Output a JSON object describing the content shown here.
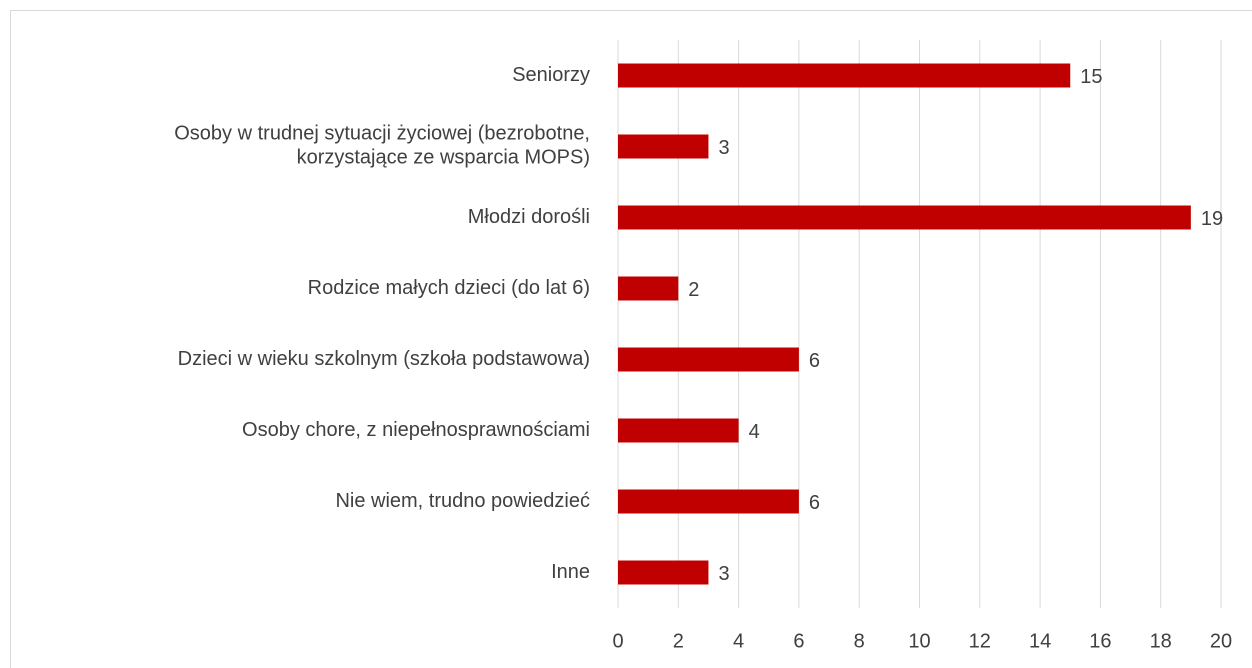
{
  "chart_data": {
    "type": "bar",
    "orientation": "horizontal",
    "categories": [
      "Seniorzy",
      "Osoby w trudnej sytuacji życiowej (bezrobotne,\nkorzystające ze wsparcia MOPS)",
      "Młodzi dorośli",
      "Rodzice małych dzieci (do lat 6)",
      "Dzieci w wieku szkolnym (szkoła podstawowa)",
      "Osoby chore, z niepełnosprawnościami",
      "Nie wiem, trudno powiedzieć",
      "Inne"
    ],
    "values": [
      15,
      3,
      19,
      2,
      6,
      4,
      6,
      3
    ],
    "color": "#c00000",
    "xlim": [
      0,
      20
    ],
    "xticks": [
      0,
      2,
      4,
      6,
      8,
      10,
      12,
      14,
      16,
      18,
      20
    ],
    "grid": true
  }
}
